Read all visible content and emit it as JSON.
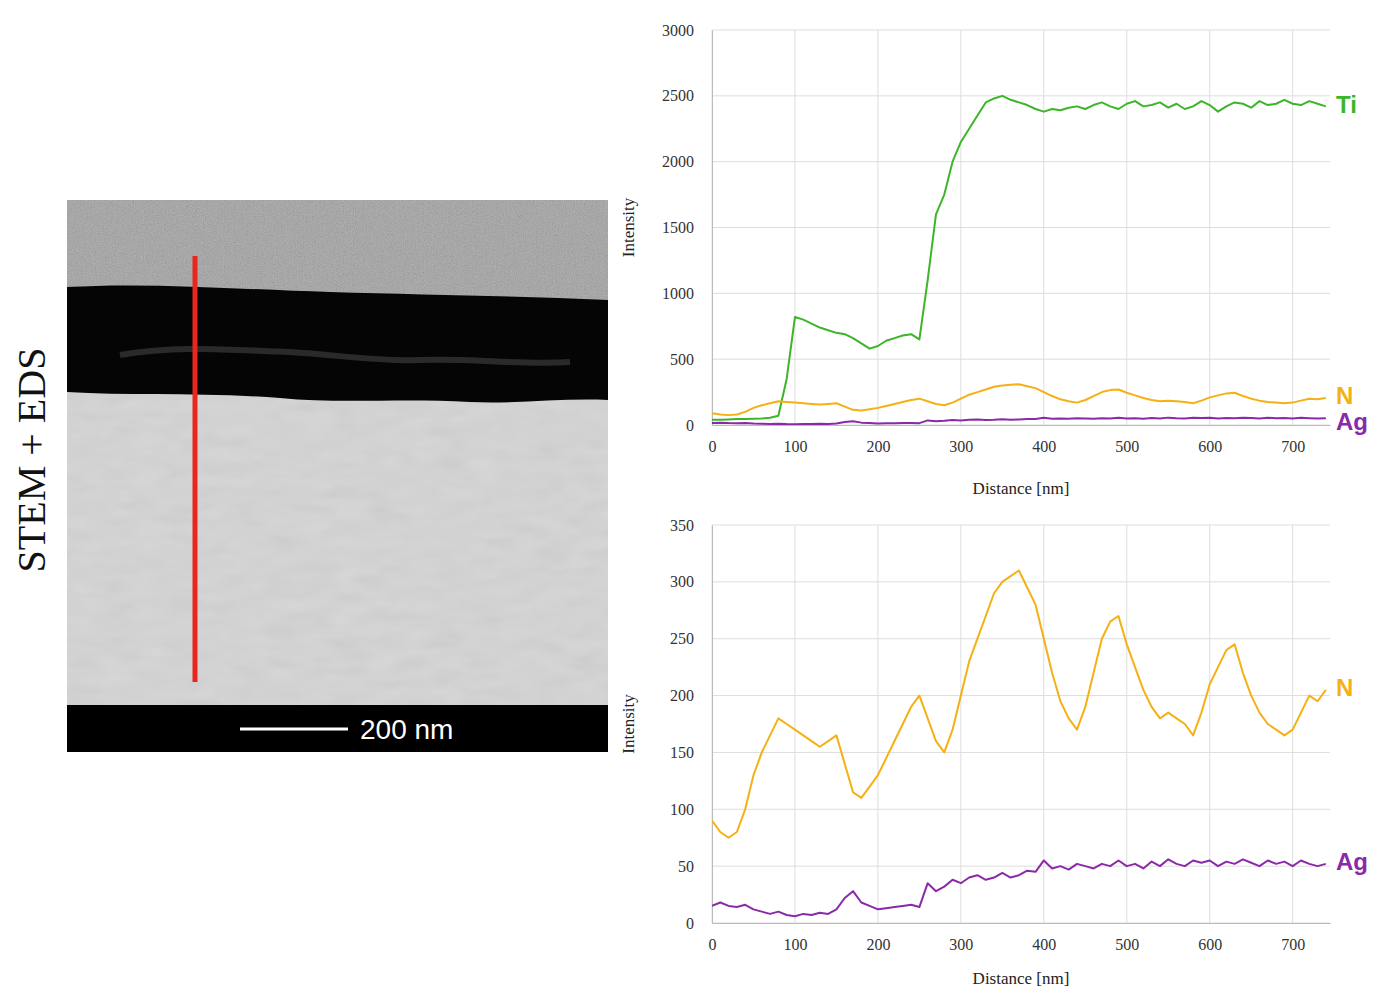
{
  "image": {
    "label": "STEM + EDS",
    "scale_bar": "200 nm"
  },
  "chart_data": [
    {
      "type": "line",
      "xlabel": "Distance [nm]",
      "ylabel": "Intensity",
      "xlim": [
        0,
        745
      ],
      "xticks": [
        0,
        100,
        200,
        300,
        400,
        500,
        600,
        700
      ],
      "ylim": [
        0,
        3000
      ],
      "yticks": [
        0,
        500,
        1000,
        1500,
        2000,
        2500,
        3000
      ],
      "grid": true,
      "legend": "right",
      "x": [
        0,
        10,
        20,
        30,
        40,
        50,
        60,
        70,
        80,
        90,
        100,
        110,
        120,
        130,
        140,
        150,
        160,
        170,
        180,
        190,
        200,
        210,
        220,
        230,
        240,
        250,
        260,
        270,
        280,
        290,
        300,
        310,
        320,
        330,
        340,
        350,
        360,
        370,
        380,
        390,
        400,
        410,
        420,
        430,
        440,
        450,
        460,
        470,
        480,
        490,
        500,
        510,
        520,
        530,
        540,
        550,
        560,
        570,
        580,
        590,
        600,
        610,
        620,
        630,
        640,
        650,
        660,
        670,
        680,
        690,
        700,
        710,
        720,
        730,
        740
      ],
      "series": [
        {
          "name": "Ti",
          "color": "#3cb528",
          "values": [
            40,
            40,
            42,
            45,
            45,
            48,
            50,
            55,
            70,
            350,
            820,
            800,
            770,
            740,
            720,
            700,
            690,
            660,
            620,
            580,
            600,
            640,
            660,
            680,
            690,
            650,
            1100,
            1600,
            1750,
            2000,
            2150,
            2250,
            2350,
            2450,
            2480,
            2500,
            2470,
            2450,
            2430,
            2400,
            2380,
            2400,
            2390,
            2410,
            2420,
            2400,
            2430,
            2450,
            2420,
            2400,
            2440,
            2460,
            2420,
            2430,
            2450,
            2410,
            2440,
            2400,
            2420,
            2460,
            2430,
            2380,
            2420,
            2450,
            2440,
            2410,
            2460,
            2430,
            2440,
            2470,
            2440,
            2430,
            2460,
            2440,
            2420
          ]
        },
        {
          "name": "N",
          "color": "#f5b014",
          "values": [
            90,
            80,
            75,
            80,
            100,
            130,
            150,
            165,
            180,
            175,
            170,
            165,
            160,
            155,
            160,
            165,
            140,
            115,
            110,
            120,
            130,
            145,
            160,
            175,
            190,
            200,
            180,
            160,
            150,
            170,
            200,
            230,
            250,
            270,
            290,
            300,
            305,
            310,
            295,
            280,
            250,
            220,
            195,
            180,
            170,
            190,
            220,
            250,
            265,
            270,
            245,
            225,
            205,
            190,
            180,
            185,
            180,
            175,
            165,
            185,
            210,
            225,
            240,
            245,
            220,
            200,
            185,
            175,
            170,
            165,
            170,
            185,
            200,
            195,
            205
          ]
        },
        {
          "name": "Ag",
          "color": "#8b2aa8",
          "values": [
            15,
            18,
            15,
            14,
            16,
            12,
            10,
            8,
            10,
            7,
            6,
            8,
            7,
            9,
            8,
            12,
            22,
            28,
            18,
            15,
            12,
            13,
            14,
            15,
            16,
            14,
            35,
            28,
            32,
            38,
            35,
            40,
            42,
            38,
            40,
            44,
            40,
            42,
            46,
            45,
            55,
            48,
            50,
            47,
            52,
            50,
            48,
            52,
            50,
            55,
            50,
            52,
            48,
            54,
            50,
            56,
            52,
            50,
            55,
            53,
            55,
            50,
            54,
            52,
            56,
            53,
            50,
            55,
            52,
            54,
            50,
            55,
            52,
            50,
            52
          ]
        }
      ]
    },
    {
      "type": "line",
      "xlabel": "Distance [nm]",
      "ylabel": "Intensity",
      "xlim": [
        0,
        745
      ],
      "xticks": [
        0,
        100,
        200,
        300,
        400,
        500,
        600,
        700
      ],
      "ylim": [
        0,
        350
      ],
      "yticks": [
        0,
        50,
        100,
        150,
        200,
        250,
        300,
        350
      ],
      "grid": true,
      "legend": "right",
      "x": [
        0,
        10,
        20,
        30,
        40,
        50,
        60,
        70,
        80,
        90,
        100,
        110,
        120,
        130,
        140,
        150,
        160,
        170,
        180,
        190,
        200,
        210,
        220,
        230,
        240,
        250,
        260,
        270,
        280,
        290,
        300,
        310,
        320,
        330,
        340,
        350,
        360,
        370,
        380,
        390,
        400,
        410,
        420,
        430,
        440,
        450,
        460,
        470,
        480,
        490,
        500,
        510,
        520,
        530,
        540,
        550,
        560,
        570,
        580,
        590,
        600,
        610,
        620,
        630,
        640,
        650,
        660,
        670,
        680,
        690,
        700,
        710,
        720,
        730,
        740
      ],
      "series": [
        {
          "name": "N",
          "color": "#f5b014",
          "values": [
            90,
            80,
            75,
            80,
            100,
            130,
            150,
            165,
            180,
            175,
            170,
            165,
            160,
            155,
            160,
            165,
            140,
            115,
            110,
            120,
            130,
            145,
            160,
            175,
            190,
            200,
            180,
            160,
            150,
            170,
            200,
            230,
            250,
            270,
            290,
            300,
            305,
            310,
            295,
            280,
            250,
            220,
            195,
            180,
            170,
            190,
            220,
            250,
            265,
            270,
            245,
            225,
            205,
            190,
            180,
            185,
            180,
            175,
            165,
            185,
            210,
            225,
            240,
            245,
            220,
            200,
            185,
            175,
            170,
            165,
            170,
            185,
            200,
            195,
            205
          ]
        },
        {
          "name": "Ag",
          "color": "#8b2aa8",
          "values": [
            15,
            18,
            15,
            14,
            16,
            12,
            10,
            8,
            10,
            7,
            6,
            8,
            7,
            9,
            8,
            12,
            22,
            28,
            18,
            15,
            12,
            13,
            14,
            15,
            16,
            14,
            35,
            28,
            32,
            38,
            35,
            40,
            42,
            38,
            40,
            44,
            40,
            42,
            46,
            45,
            55,
            48,
            50,
            47,
            52,
            50,
            48,
            52,
            50,
            55,
            50,
            52,
            48,
            54,
            50,
            56,
            52,
            50,
            55,
            53,
            55,
            50,
            54,
            52,
            56,
            53,
            50,
            55,
            52,
            54,
            50,
            55,
            52,
            50,
            52
          ]
        }
      ]
    }
  ]
}
